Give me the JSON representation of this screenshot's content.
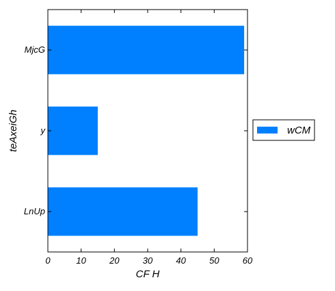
{
  "chart_data": {
    "type": "bar",
    "orientation": "horizontal",
    "categories": [
      "MjcG",
      "y",
      "LnUp"
    ],
    "series": [
      {
        "name": "wCM",
        "values": [
          59,
          15,
          45
        ],
        "color": "#0080ff"
      }
    ],
    "xlabel": "CF H",
    "ylabel": "teAxeiGh",
    "xlim": [
      0,
      60
    ],
    "xticks": [
      0,
      10,
      20,
      30,
      40,
      50,
      60
    ],
    "xtick_labels": [
      "0",
      "10",
      "20",
      "30",
      "40",
      "50",
      "60"
    ],
    "grid": false,
    "legend": {
      "position": "outside-right",
      "entries": [
        "wCM"
      ]
    }
  }
}
